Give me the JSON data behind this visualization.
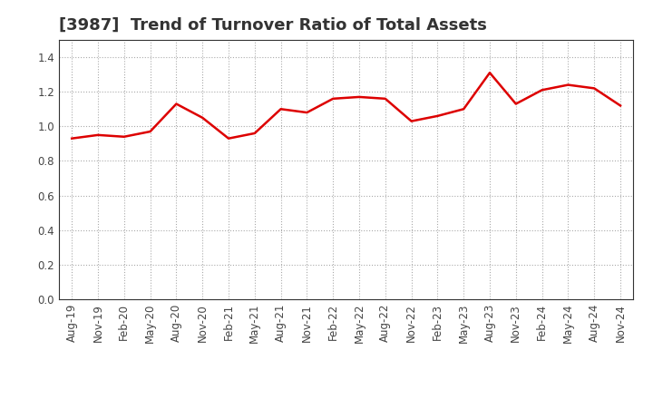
{
  "title": "[3987]  Trend of Turnover Ratio of Total Assets",
  "x_labels": [
    "Aug-19",
    "Nov-19",
    "Feb-20",
    "May-20",
    "Aug-20",
    "Nov-20",
    "Feb-21",
    "May-21",
    "Aug-21",
    "Nov-21",
    "Feb-22",
    "May-22",
    "Aug-22",
    "Nov-22",
    "Feb-23",
    "May-23",
    "Aug-23",
    "Nov-23",
    "Feb-24",
    "May-24",
    "Aug-24",
    "Nov-24"
  ],
  "values": [
    0.93,
    0.95,
    0.94,
    0.97,
    1.13,
    1.05,
    0.93,
    0.96,
    1.1,
    1.08,
    1.16,
    1.17,
    1.16,
    1.03,
    1.06,
    1.1,
    1.31,
    1.13,
    1.21,
    1.24,
    1.22,
    1.12
  ],
  "line_color": "#dd0000",
  "line_width": 1.8,
  "ylim": [
    0.0,
    1.5
  ],
  "yticks": [
    0.0,
    0.2,
    0.4,
    0.6,
    0.8,
    1.0,
    1.2,
    1.4
  ],
  "background_color": "#ffffff",
  "plot_bg_color": "#ffffff",
  "grid_color": "#aaaaaa",
  "title_fontsize": 13,
  "tick_fontsize": 8.5,
  "title_color": "#333333"
}
